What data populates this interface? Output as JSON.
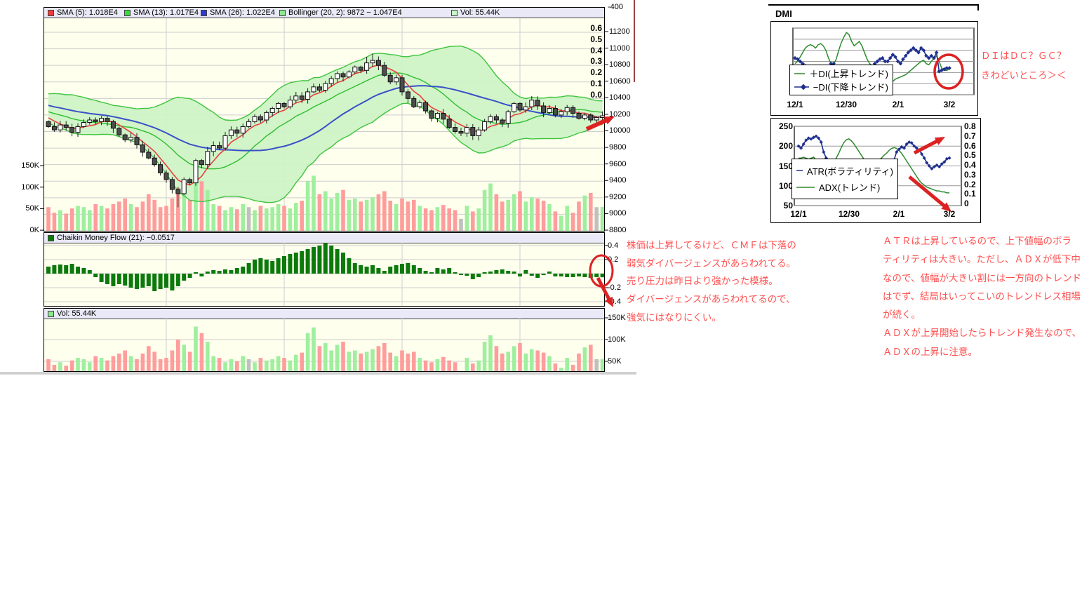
{
  "panels": {
    "main_legend": [
      {
        "label": "SMA (5): 1.018E4",
        "color": "#F43A3A"
      },
      {
        "label": "SMA (13): 1.017E4",
        "color": "#35E035"
      },
      {
        "label": "SMA (26): 1.022E4",
        "color": "#3038D8"
      },
      {
        "label": "Bollinger (20, 2): 9872 − 1.047E4",
        "color": "#8FE88F"
      },
      {
        "label": "Vol: 55.44K",
        "color": "#C8F8C8"
      }
    ],
    "cmf_legend": {
      "label": "Chaikin Money Flow (21): −0.0517",
      "color": "#0B7A0B"
    },
    "vol_legend": {
      "label": "Vol: 55.44K",
      "color": "#8FE88F"
    }
  },
  "annotations": {
    "dmi_note": [
      "ＤＩはＤＣ？ＧＣ？",
      "きわどいところ＞＜"
    ],
    "cmf_note": [
      "株価は上昇してるけど、ＣＭＦは下落の",
      "弱気ダイバージェンスがあらわれてる。",
      "売り圧力は昨日より強かった模様。",
      "ダイバージェンスがあらわれてるので、",
      "強気にはなりにくい。"
    ],
    "atr_note": [
      "ＡＴＲは上昇しているので、上下値幅のボラ",
      "ティリティは大きい。ただし、ＡＤＸが低下中",
      "なので、値幅が大きい割には一方向のトレンド",
      "はでず、結局はいってこいのトレンドレス相場",
      "が続く。",
      "ＡＤＸが上昇開始したらトレンド発生なので、",
      "ＡＤＸの上昇に注意。"
    ]
  },
  "colors": {
    "plot_bg": "#FFFFEE",
    "legend_bg": "#E9E9F8",
    "grid": "#CDCDCD",
    "up_candle": "#FFFFFF",
    "down_candle": "#4D4D4D",
    "vol_up": "#9FEF9F",
    "vol_down": "#FF9D9D",
    "vol_neutral": "#C0C0C0",
    "sma5": "#E84040",
    "sma13": "#2FBF2F",
    "sma26": "#3A50C8",
    "bollinger_fill": "#CEF3C6",
    "bollinger_edge": "#3FC43F",
    "cmf_bar": "#0B7A0B",
    "annotation_red": "#FF5050",
    "shape_red": "#DD2222",
    "plus_di": "#2E8B2E",
    "minus_di": "#1F2F8F",
    "maroon_line": "#9A4444"
  },
  "chart_data": [
    {
      "id": "main",
      "type": "candlestick",
      "title": "",
      "y_top_label": "-400",
      "y_ticks": [
        "11200",
        "11000",
        "10800",
        "10600",
        "10400",
        "10200",
        "10000",
        "9800",
        "9600",
        "9400",
        "9200",
        "9000",
        "8800"
      ],
      "vol_ticks": [
        "150K",
        "100K",
        "50K",
        "0K"
      ],
      "ylim": [
        8800,
        11200
      ],
      "overlays": [
        "SMA(5)",
        "SMA(13)",
        "SMA(26)",
        "Bollinger(20,2)"
      ],
      "pre_closes": [
        10450,
        10480,
        10420,
        10460,
        10400,
        10430,
        10380,
        10420,
        10360,
        10390,
        10340,
        10370,
        10320,
        10350,
        10300,
        10330,
        10280,
        10310,
        10260,
        10290,
        10240,
        10270,
        10220,
        10250,
        10180,
        10120
      ],
      "closes": [
        10060,
        10020,
        10080,
        10050,
        9990,
        10060,
        10110,
        10140,
        10120,
        10160,
        10120,
        10040,
        9960,
        9900,
        9930,
        9840,
        9750,
        9680,
        9600,
        9500,
        9420,
        9300,
        9250,
        9420,
        9380,
        9650,
        9600,
        9760,
        9830,
        9800,
        9950,
        10020,
        9980,
        10060,
        10120,
        10180,
        10140,
        10230,
        10280,
        10340,
        10300,
        10380,
        10430,
        10390,
        10480,
        10540,
        10500,
        10580,
        10640,
        10700,
        10660,
        10720,
        10780,
        10740,
        10830,
        10860,
        10800,
        10680,
        10600,
        10650,
        10480,
        10400,
        10300,
        10350,
        10250,
        10160,
        10220,
        10150,
        10050,
        10000,
        9980,
        10050,
        9950,
        10020,
        10120,
        10180,
        10140,
        10100,
        10240,
        10340,
        10260,
        10300,
        10380,
        10310,
        10230,
        10280,
        10200,
        10240,
        10290,
        10220,
        10160,
        10200,
        10140,
        10170,
        10190
      ],
      "volumes": [
        55,
        42,
        48,
        40,
        52,
        58,
        55,
        48,
        62,
        58,
        52,
        62,
        68,
        75,
        62,
        55,
        68,
        85,
        72,
        55,
        58,
        75,
        100,
        88,
        72,
        130,
        115,
        95,
        62,
        58,
        48,
        55,
        50,
        62,
        55,
        48,
        58,
        52,
        55,
        62,
        58,
        52,
        65,
        70,
        115,
        128,
        85,
        92,
        75,
        88,
        95,
        72,
        75,
        68,
        72,
        78,
        85,
        92,
        70,
        62,
        75,
        68,
        72,
        58,
        52,
        48,
        55,
        60,
        52,
        48,
        28,
        58,
        45,
        52,
        95,
        110,
        85,
        68,
        72,
        85,
        92,
        68,
        78,
        75,
        70,
        62,
        45,
        35,
        58,
        42,
        68,
        82,
        88,
        55,
        55.44
      ],
      "neutral_volume_days": [
        34,
        70,
        93
      ]
    },
    {
      "id": "cmf",
      "type": "bar",
      "name": "Chaikin Money Flow (21)",
      "last_value": -0.0517,
      "y_ticks": [
        "0.4",
        "0.2",
        "-0.2",
        "-0.4"
      ],
      "ylim": [
        -0.5,
        0.5
      ],
      "values": [
        0.1,
        0.12,
        0.13,
        0.12,
        0.14,
        0.1,
        0.08,
        0.05,
        -0.05,
        -0.12,
        -0.15,
        -0.18,
        -0.15,
        -0.17,
        -0.2,
        -0.22,
        -0.2,
        -0.18,
        -0.25,
        -0.22,
        -0.2,
        -0.24,
        -0.18,
        -0.1,
        -0.06,
        0.02,
        -0.04,
        0.03,
        0.05,
        0.04,
        0.06,
        0.05,
        0.08,
        0.1,
        0.15,
        0.2,
        0.22,
        0.2,
        0.18,
        0.22,
        0.25,
        0.28,
        0.3,
        0.32,
        0.35,
        0.38,
        0.4,
        0.43,
        0.4,
        0.35,
        0.3,
        0.22,
        0.15,
        0.12,
        0.1,
        0.12,
        0.08,
        0.04,
        0.1,
        0.12,
        0.14,
        0.15,
        0.12,
        0.08,
        0.04,
        0.02,
        0.08,
        0.06,
        0.08,
        0.02,
        -0.02,
        -0.03,
        -0.08,
        -0.05,
        0.02,
        0.03,
        0.05,
        0.06,
        0.04,
        0.03,
        -0.04,
        0.05,
        -0.03,
        -0.06,
        -0.02,
        0.03,
        -0.04,
        -0.04,
        -0.05,
        -0.05,
        -0.04,
        -0.05,
        -0.06,
        -0.05,
        -0.0517
      ]
    },
    {
      "id": "volume_panel",
      "type": "bar",
      "name": "Vol",
      "last_value": "55.44K",
      "y_ticks": [
        "150K",
        "100K",
        "50K"
      ],
      "uses": "main.volumes"
    },
    {
      "id": "dmi",
      "type": "line",
      "title": "DMI",
      "x_ticks": [
        "12/1",
        "12/30",
        "2/1",
        "3/2"
      ],
      "ylim": [
        0,
        0.6
      ],
      "y_ticks": [
        "0.6",
        "0.5",
        "0.4",
        "0.3",
        "0.2",
        "0.1",
        "0.0"
      ],
      "series": [
        {
          "name": "＋DI(上昇トレンド)",
          "color": "#2E8B2E",
          "markers": false,
          "values": [
            0.28,
            0.3,
            0.34,
            0.38,
            0.42,
            0.44,
            0.45,
            0.44,
            0.42,
            0.45,
            0.46,
            0.44,
            0.4,
            0.33,
            0.28,
            0.27,
            0.32,
            0.4,
            0.47,
            0.52,
            0.56,
            0.54,
            0.48,
            0.44,
            0.46,
            0.48,
            0.44,
            0.38,
            0.32,
            0.28,
            0.26,
            0.22,
            0.18,
            0.1,
            0.06,
            0.05,
            0.05,
            0.08,
            0.12,
            0.14,
            0.15,
            0.16,
            0.17,
            0.18,
            0.2,
            0.22,
            0.24,
            0.26,
            0.28,
            0.3,
            0.31,
            0.28,
            0.27,
            0.3,
            0.33,
            0.35,
            0.3,
            0.24,
            0.22,
            0.22,
            0.23
          ]
        },
        {
          "name": "−DI(下降トレンド)",
          "color": "#1F2F8F",
          "markers": true,
          "values": [
            0.33,
            0.32,
            0.3,
            0.28,
            0.26,
            0.24,
            0.22,
            0.2,
            0.19,
            0.18,
            0.17,
            0.18,
            0.2,
            0.24,
            0.28,
            0.28,
            0.24,
            0.2,
            0.16,
            0.13,
            0.1,
            0.12,
            0.14,
            0.15,
            0.14,
            0.12,
            0.14,
            0.17,
            0.2,
            0.23,
            0.25,
            0.28,
            0.3,
            0.32,
            0.33,
            0.3,
            0.3,
            0.33,
            0.36,
            0.34,
            0.3,
            0.28,
            0.32,
            0.35,
            0.38,
            0.4,
            0.42,
            0.4,
            0.38,
            0.42,
            0.4,
            0.35,
            0.33,
            0.35,
            0.33,
            0.38,
            0.21,
            0.22,
            0.23,
            0.24,
            0.24
          ]
        }
      ]
    },
    {
      "id": "atr_adx",
      "type": "line",
      "title": "",
      "x_ticks": [
        "12/1",
        "12/30",
        "2/1",
        "3/2"
      ],
      "left_ylim": [
        50,
        250
      ],
      "right_ylim": [
        0,
        0.8
      ],
      "left_ticks": [
        "250",
        "200",
        "150",
        "100",
        "50"
      ],
      "right_ticks": [
        "0.8",
        "0.7",
        "0.6",
        "0.5",
        "0.4",
        "0.3",
        "0.2",
        "0.1",
        "0"
      ],
      "series": [
        {
          "name": "ATR(ボラティリティ)",
          "color": "#1F2F8F",
          "axis": "left",
          "markers": true,
          "values": [
            200,
            195,
            205,
            215,
            220,
            218,
            222,
            225,
            220,
            210,
            185,
            170,
            160,
            150,
            155,
            148,
            145,
            152,
            158,
            150,
            145,
            150,
            143,
            148,
            145,
            150,
            148,
            152,
            147,
            153,
            158,
            160,
            155,
            160,
            158,
            156,
            162,
            158,
            165,
            185,
            192,
            198,
            195,
            205,
            210,
            208,
            200,
            195,
            190,
            180,
            170,
            158,
            150,
            143,
            148,
            152,
            148,
            155,
            160,
            168,
            170
          ]
        },
        {
          "name": "ADX(トレンド)",
          "color": "#2E8B2E",
          "axis": "right",
          "markers": false,
          "values": [
            0.47,
            0.47,
            0.48,
            0.47,
            0.46,
            0.47,
            0.48,
            0.45,
            0.42,
            0.4,
            0.38,
            0.37,
            0.38,
            0.4,
            0.43,
            0.47,
            0.52,
            0.58,
            0.63,
            0.66,
            0.67,
            0.65,
            0.62,
            0.58,
            0.54,
            0.5,
            0.46,
            0.43,
            0.41,
            0.4,
            0.41,
            0.43,
            0.45,
            0.47,
            0.5,
            0.52,
            0.55,
            0.57,
            0.58,
            0.57,
            0.55,
            0.52,
            0.48,
            0.44,
            0.4,
            0.36,
            0.32,
            0.28,
            0.24,
            0.21,
            0.19,
            0.17,
            0.16,
            0.15,
            0.14,
            0.13,
            0.13,
            0.12,
            0.12,
            0.11,
            0.11
          ]
        }
      ]
    }
  ]
}
